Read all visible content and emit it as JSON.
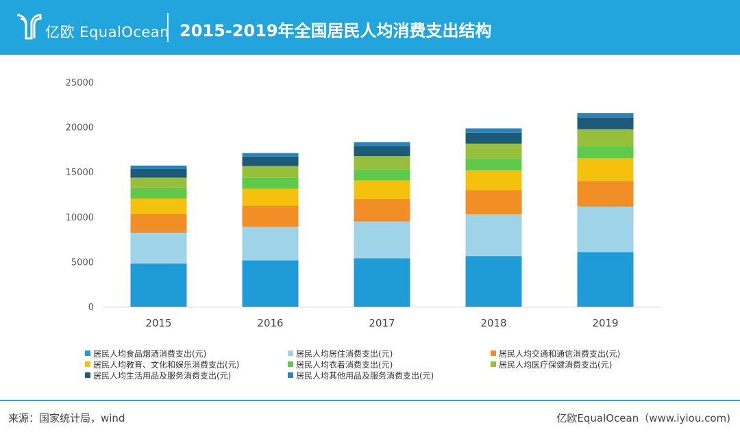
{
  "header": {
    "brand_text": "亿欧 EqualOcean",
    "title": "2015-2019年全国居民人均消费支出结构"
  },
  "chart_data": {
    "type": "bar",
    "stacked": true,
    "categories": [
      "2015",
      "2016",
      "2017",
      "2018",
      "2019"
    ],
    "ylim": [
      0,
      25000
    ],
    "yticks": [
      0,
      5000,
      10000,
      15000,
      20000,
      25000
    ],
    "grid": false,
    "legend_position": "bottom",
    "series": [
      {
        "name": "居民人均食品烟酒消费支出(元)",
        "color": "#1f9bd7",
        "values": [
          4814,
          5151,
          5374,
          5631,
          6084
        ]
      },
      {
        "name": "居民人均居住消费支出(元)",
        "color": "#9ed3e8",
        "values": [
          3419,
          3746,
          4107,
          4647,
          5055
        ]
      },
      {
        "name": "居民人均交通和通信消费支出(元)",
        "color": "#f28e26",
        "values": [
          2087,
          2338,
          2499,
          2675,
          2862
        ]
      },
      {
        "name": "居民人均教育、文化和娱乐消费支出(元)",
        "color": "#f4c20d",
        "values": [
          1723,
          1915,
          2086,
          2226,
          2513
        ]
      },
      {
        "name": "居民人均衣着消费支出(元)",
        "color": "#5fc94b",
        "values": [
          1164,
          1203,
          1238,
          1289,
          1338
        ]
      },
      {
        "name": "居民人均医疗保健消费支出(元)",
        "color": "#97bf3c",
        "values": [
          1165,
          1307,
          1451,
          1685,
          1902
        ]
      },
      {
        "name": "居民人均生活用品及服务消费支出(元)",
        "color": "#1d5a78",
        "values": [
          951,
          1044,
          1121,
          1223,
          1281
        ]
      },
      {
        "name": "居民人均其他用品及服务消费支出(元)",
        "color": "#2b83b7",
        "values": [
          389,
          406,
          447,
          477,
          524
        ]
      }
    ]
  },
  "footer": {
    "source": "来源：国家统计局，wind",
    "credit": "亿欧EqualOcean（www.iyiou.com)"
  }
}
